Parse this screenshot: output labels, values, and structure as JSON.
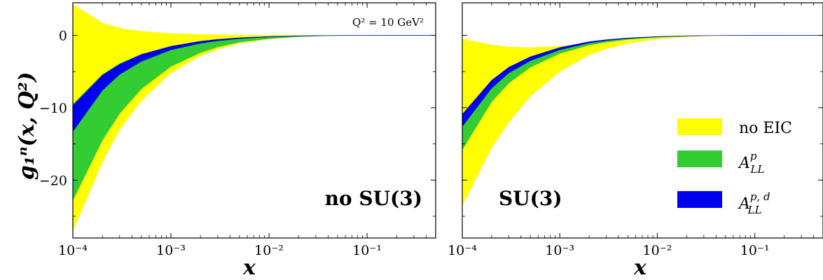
{
  "chart_data": [
    {
      "type": "area",
      "panel_label": "no SU(3)",
      "annotation": "Q² = 10 GeV²",
      "xlabel": "x",
      "ylabel": "g₁ⁿ(x, Q²)",
      "xscale": "log",
      "xlim": [
        0.0001,
        0.5
      ],
      "ylim": [
        -28,
        4.5
      ],
      "x_ticks": [
        0.0001,
        0.001,
        0.01,
        0.1
      ],
      "x_tick_labels": [
        "10⁻⁴",
        "10⁻³",
        "10⁻²",
        "10⁻¹"
      ],
      "y_ticks": [
        0,
        -10,
        -20
      ],
      "y_tick_labels": [
        "0",
        "−10",
        "−20"
      ],
      "x": [
        0.0001,
        0.0002,
        0.0003,
        0.0005,
        0.001,
        0.002,
        0.003,
        0.005,
        0.01,
        0.02,
        0.03,
        0.05,
        0.1,
        0.2,
        0.5
      ],
      "series": [
        {
          "name": "no EIC",
          "color": "#ffff00",
          "lower": [
            -27.0,
            -17.5,
            -13.0,
            -9.0,
            -5.2,
            -2.8,
            -1.9,
            -1.1,
            -0.5,
            -0.2,
            -0.1,
            -0.05,
            -0.02,
            -0.01,
            0.0
          ],
          "upper": [
            4.3,
            1.7,
            1.0,
            0.55,
            0.25,
            0.12,
            0.08,
            0.04,
            0.02,
            0.01,
            0.005,
            0.0,
            0.0,
            0.0,
            0.0
          ]
        },
        {
          "name": "A_LL^p",
          "color": "#33cc33",
          "lower": [
            -22.8,
            -14.5,
            -10.8,
            -7.4,
            -4.3,
            -2.4,
            -1.6,
            -0.95,
            -0.45,
            -0.18,
            -0.1,
            -0.04,
            -0.02,
            -0.01,
            0.0
          ],
          "upper": [
            -9.5,
            -5.4,
            -3.9,
            -2.6,
            -1.5,
            -0.8,
            -0.55,
            -0.33,
            -0.15,
            -0.06,
            -0.03,
            -0.01,
            0.0,
            0.0,
            0.0
          ]
        },
        {
          "name": "A_LL^{p, d}",
          "color": "#0000ee",
          "lower": [
            -13.3,
            -7.6,
            -5.4,
            -3.6,
            -2.0,
            -1.1,
            -0.75,
            -0.45,
            -0.22,
            -0.09,
            -0.05,
            -0.02,
            -0.01,
            0.0,
            0.0
          ],
          "upper": [
            -9.7,
            -5.5,
            -4.0,
            -2.65,
            -1.52,
            -0.82,
            -0.56,
            -0.34,
            -0.16,
            -0.065,
            -0.035,
            -0.012,
            -0.005,
            0.0,
            0.0
          ]
        }
      ]
    },
    {
      "type": "area",
      "panel_label": "SU(3)",
      "xlabel": "x",
      "xscale": "log",
      "xlim": [
        0.0001,
        0.5
      ],
      "ylim": [
        -28,
        4.5
      ],
      "x_ticks": [
        0.0001,
        0.001,
        0.01,
        0.1
      ],
      "x_tick_labels": [
        "10⁻⁴",
        "10⁻³",
        "10⁻²",
        "10⁻¹"
      ],
      "x": [
        0.0001,
        0.0002,
        0.0003,
        0.0005,
        0.001,
        0.002,
        0.003,
        0.005,
        0.01,
        0.02,
        0.03,
        0.05,
        0.1,
        0.2,
        0.5
      ],
      "series": [
        {
          "name": "no EIC",
          "color": "#ffff00",
          "lower": [
            -23.5,
            -15.5,
            -12.0,
            -8.4,
            -5.0,
            -2.7,
            -1.85,
            -1.1,
            -0.5,
            -0.2,
            -0.1,
            -0.05,
            -0.02,
            -0.01,
            0.0
          ],
          "upper": [
            -0.5,
            -1.3,
            -1.6,
            -1.7,
            -1.5,
            -1.0,
            -0.7,
            -0.4,
            -0.15,
            -0.05,
            -0.02,
            -0.01,
            0.0,
            0.0,
            0.0
          ]
        },
        {
          "name": "A_LL^p",
          "color": "#33cc33",
          "lower": [
            -15.8,
            -9.2,
            -6.6,
            -4.4,
            -2.5,
            -1.35,
            -0.95,
            -0.55,
            -0.27,
            -0.1,
            -0.05,
            -0.02,
            -0.01,
            0.0,
            0.0
          ],
          "upper": [
            -11.0,
            -6.3,
            -4.5,
            -3.0,
            -1.7,
            -0.9,
            -0.62,
            -0.37,
            -0.17,
            -0.06,
            -0.03,
            -0.01,
            0.0,
            0.0,
            0.0
          ]
        },
        {
          "name": "A_LL^{p, d}",
          "color": "#0000ee",
          "lower": [
            -12.6,
            -7.3,
            -5.2,
            -3.5,
            -2.0,
            -1.05,
            -0.72,
            -0.43,
            -0.2,
            -0.08,
            -0.04,
            -0.015,
            -0.005,
            0.0,
            0.0
          ],
          "upper": [
            -10.9,
            -6.2,
            -4.4,
            -2.95,
            -1.68,
            -0.88,
            -0.6,
            -0.36,
            -0.16,
            -0.06,
            -0.03,
            -0.01,
            0.0,
            0.0,
            0.0
          ]
        }
      ]
    }
  ],
  "legend": {
    "placement": "center-right of right panel",
    "entries": [
      {
        "label": "no EIC",
        "color": "#ffff00"
      },
      {
        "label_base": "A",
        "label_sup": "p",
        "label_sub": "LL",
        "color": "#33cc33"
      },
      {
        "label_base": "A",
        "label_sup": "p, d",
        "label_sub": "LL",
        "color": "#0000ee"
      }
    ]
  }
}
